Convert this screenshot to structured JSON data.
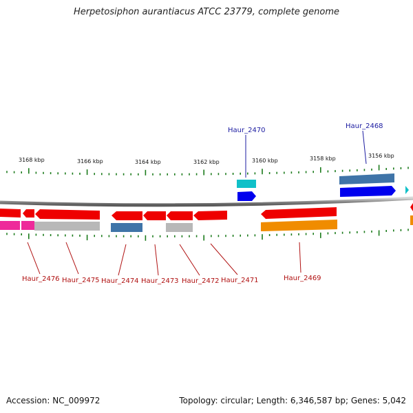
{
  "title": "Herpetosiphon aurantiacus ATCC 23779, complete genome",
  "footer": {
    "accession": "Accession: NC_009972",
    "summary": "Topology: circular; Length: 6,346,587 bp; Genes: 5,042"
  },
  "colors": {
    "tick": "#1a7a1a",
    "backbone": "#8a8a8a",
    "top_label": "#1a1aa0",
    "bottom_label": "#b01010",
    "gene_red": "#ee0000",
    "gene_blue": "#0000ee",
    "gene_steel": "#3f74a8",
    "gene_cyan": "#10c0c8",
    "gene_magenta": "#ee2a9a",
    "gene_gray": "#b8b8b8",
    "gene_orange": "#f08c00"
  },
  "scale_labels": [
    "3168 kbp",
    "3166 kbp",
    "3164 kbp",
    "3162 kbp",
    "3160 kbp",
    "3158 kbp",
    "3156 kbp"
  ],
  "top_gene_labels": [
    "Haur_2470",
    "Haur_2468"
  ],
  "bottom_gene_labels": [
    "Haur_2476",
    "Haur_2475",
    "Haur_2474",
    "Haur_2473",
    "Haur_2472",
    "Haur_2471",
    "Haur_2469"
  ]
}
